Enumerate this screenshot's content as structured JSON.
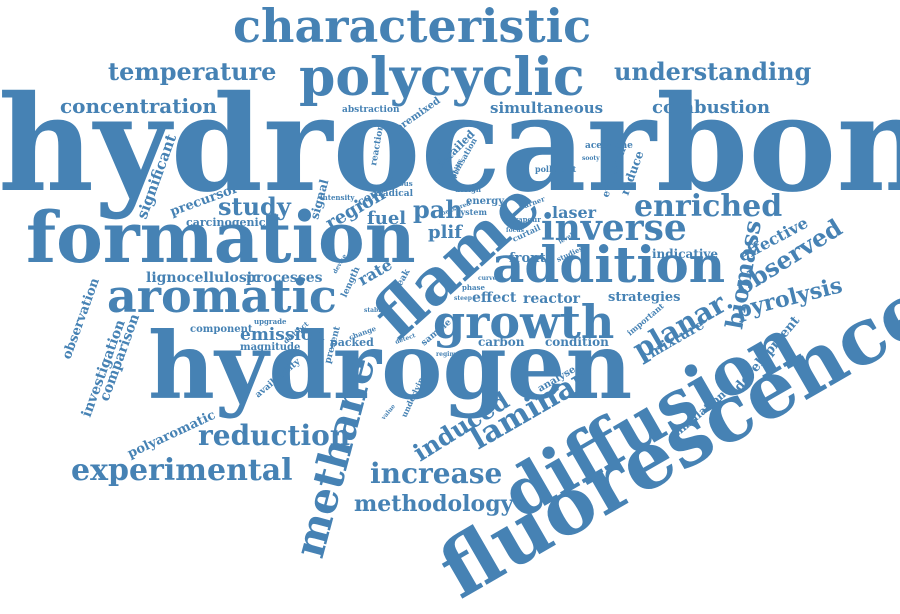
{
  "cloud": {
    "color": "#4682b4",
    "words": [
      "hydrocarbon",
      "hydrogen",
      "fluorescence",
      "formation",
      "diffusion",
      "characteristic",
      "polycyclic",
      "flame",
      "addition",
      "aromatic",
      "growth",
      "methane",
      "experimental",
      "inverse",
      "enriched",
      "reduction",
      "temperature",
      "understanding",
      "concentration",
      "combustion",
      "increase",
      "methodology",
      "laminar",
      "induced",
      "study",
      "planar",
      "biomass",
      "observed",
      "pyrolysis",
      "simultaneous",
      "region",
      "fuel",
      "pah",
      "laser",
      "plif",
      "emission",
      "effective",
      "significant",
      "investigation",
      "comparison",
      "observation",
      "polyaromatic",
      "lignocellulosic",
      "processes",
      "carcinogenic",
      "precursor",
      "development",
      "simulation",
      "mixture",
      "strategies",
      "reactor",
      "effect",
      "rate",
      "front",
      "indicative",
      "carbon",
      "condition",
      "packed",
      "component",
      "magnitude",
      "availability",
      "analyse",
      "acetylene",
      "abstraction",
      "premixed",
      "detailed",
      "evolution",
      "reduce",
      "reaction",
      "utilisation",
      "pollutant",
      "signal",
      "control",
      "various",
      "radical",
      "intensity",
      "energy",
      "design",
      "system",
      "curtail",
      "studies",
      "vapour",
      "length",
      "peak",
      "upgrade",
      "device",
      "present",
      "change",
      "sample",
      "underlying",
      "important",
      "distinct",
      "burner",
      "phase",
      "curve",
      "steep",
      "sooty",
      "focus",
      "detect",
      "value",
      "appear",
      "stable",
      "regime",
      "level",
      "measured"
    ]
  }
}
